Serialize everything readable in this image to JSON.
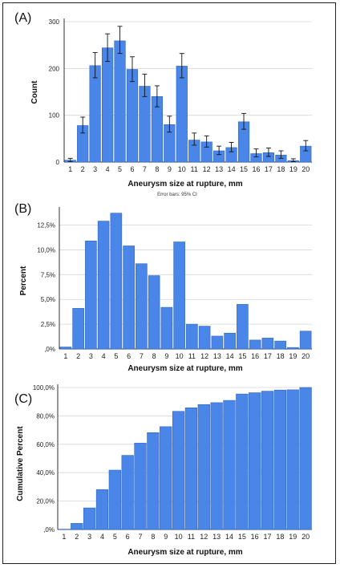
{
  "colors": {
    "bar": "#4a86e8",
    "bar_edge": "#2f64c0",
    "grid": "#d6d6d6",
    "axis": "#333333",
    "error": "#111111"
  },
  "chart_data": [
    {
      "panel": "(A)",
      "type": "bar",
      "categories": [
        "1",
        "2",
        "3",
        "4",
        "5",
        "6",
        "7",
        "8",
        "9",
        "10",
        "11",
        "12",
        "13",
        "14",
        "15",
        "16",
        "17",
        "18",
        "19",
        "20"
      ],
      "values": [
        4,
        78,
        206,
        244,
        259,
        198,
        162,
        140,
        80,
        205,
        47,
        43,
        24,
        31,
        86,
        18,
        20,
        15,
        3,
        34
      ],
      "error_lower": [
        1,
        62,
        180,
        215,
        232,
        172,
        140,
        118,
        64,
        180,
        36,
        32,
        16,
        22,
        70,
        11,
        12,
        8,
        1,
        24
      ],
      "error_upper": [
        8,
        96,
        234,
        274,
        290,
        225,
        188,
        163,
        98,
        232,
        62,
        56,
        34,
        42,
        104,
        28,
        30,
        24,
        7,
        46
      ],
      "xlabel": "Aneurysm size at rupture, mm",
      "ylabel": "Count",
      "ylim": [
        0,
        300
      ],
      "yticks": [
        "0",
        "100",
        "200",
        "300"
      ],
      "note": "Error bars: 95% CI",
      "grid": true
    },
    {
      "panel": "(B)",
      "type": "bar",
      "categories": [
        "1",
        "2",
        "3",
        "4",
        "5",
        "6",
        "7",
        "8",
        "9",
        "10",
        "11",
        "12",
        "13",
        "14",
        "15",
        "16",
        "17",
        "18",
        "19",
        "20"
      ],
      "values": [
        0.2,
        4.1,
        10.9,
        12.9,
        13.7,
        10.4,
        8.6,
        7.4,
        4.2,
        10.8,
        2.5,
        2.3,
        1.3,
        1.6,
        4.5,
        0.9,
        1.1,
        0.8,
        0.15,
        1.8
      ],
      "xlabel": "Aneurysm size at rupture, mm",
      "ylabel": "Percent",
      "ylim": [
        0,
        14
      ],
      "yticks": [
        ",0%",
        "2,5%",
        "5,0%",
        "7,5%",
        "10,0%",
        "12,5%"
      ],
      "grid": true
    },
    {
      "panel": "(C)",
      "type": "bar",
      "categories": [
        "1",
        "2",
        "3",
        "4",
        "5",
        "6",
        "7",
        "8",
        "9",
        "10",
        "11",
        "12",
        "13",
        "14",
        "15",
        "16",
        "17",
        "18",
        "19",
        "20"
      ],
      "values": [
        0.2,
        4.3,
        15.2,
        28.1,
        41.8,
        52.2,
        60.8,
        68.2,
        72.4,
        83.2,
        85.7,
        88.0,
        89.3,
        90.9,
        95.4,
        96.3,
        97.4,
        98.2,
        98.35,
        100.0
      ],
      "xlabel": "Aneurysm size at rupture, mm",
      "ylabel": "Cumulative Percent",
      "ylim": [
        0,
        100
      ],
      "yticks": [
        ",0%",
        "20,0%",
        "40,0%",
        "60,0%",
        "80,0%",
        "100,0%"
      ],
      "grid": true
    }
  ]
}
